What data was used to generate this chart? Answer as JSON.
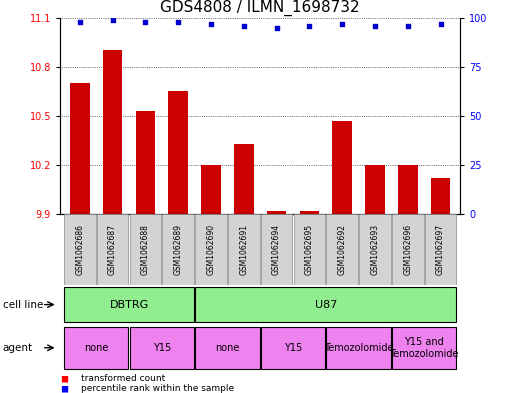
{
  "title": "GDS4808 / ILMN_1698732",
  "samples": [
    "GSM1062686",
    "GSM1062687",
    "GSM1062688",
    "GSM1062689",
    "GSM1062690",
    "GSM1062691",
    "GSM1062694",
    "GSM1062695",
    "GSM1062692",
    "GSM1062693",
    "GSM1062696",
    "GSM1062697"
  ],
  "transformed_counts": [
    10.7,
    10.9,
    10.53,
    10.65,
    10.2,
    10.33,
    9.92,
    9.92,
    10.47,
    10.2,
    10.2,
    10.12
  ],
  "percentile_ranks": [
    98,
    99,
    98,
    98,
    97,
    96,
    95,
    96,
    97,
    96,
    96,
    97
  ],
  "ylim_left": [
    9.9,
    11.1
  ],
  "ylim_right": [
    0,
    100
  ],
  "yticks_left": [
    9.9,
    10.2,
    10.5,
    10.8,
    11.1
  ],
  "yticks_right": [
    0,
    25,
    50,
    75,
    100
  ],
  "cell_line_groups": [
    {
      "label": "DBTRG",
      "start": 0,
      "end": 3,
      "color": "#90EE90"
    },
    {
      "label": "U87",
      "start": 4,
      "end": 11,
      "color": "#90EE90"
    }
  ],
  "agent_groups": [
    {
      "label": "none",
      "start": 0,
      "end": 1,
      "color": "#EE82EE"
    },
    {
      "label": "Y15",
      "start": 2,
      "end": 3,
      "color": "#EE82EE"
    },
    {
      "label": "none",
      "start": 4,
      "end": 5,
      "color": "#EE82EE"
    },
    {
      "label": "Y15",
      "start": 6,
      "end": 7,
      "color": "#EE82EE"
    },
    {
      "label": "Temozolomide",
      "start": 8,
      "end": 9,
      "color": "#EE82EE"
    },
    {
      "label": "Y15 and\nTemozolomide",
      "start": 10,
      "end": 11,
      "color": "#EE82EE"
    }
  ],
  "bar_color": "#CC0000",
  "dot_color": "#0000CC",
  "bar_width": 0.6,
  "background_color": "#ffffff",
  "title_fontsize": 11,
  "tick_fontsize": 7,
  "sample_fontsize": 5.5,
  "label_fontsize": 7.5,
  "cell_fontsize": 8,
  "agent_fontsize": 7
}
